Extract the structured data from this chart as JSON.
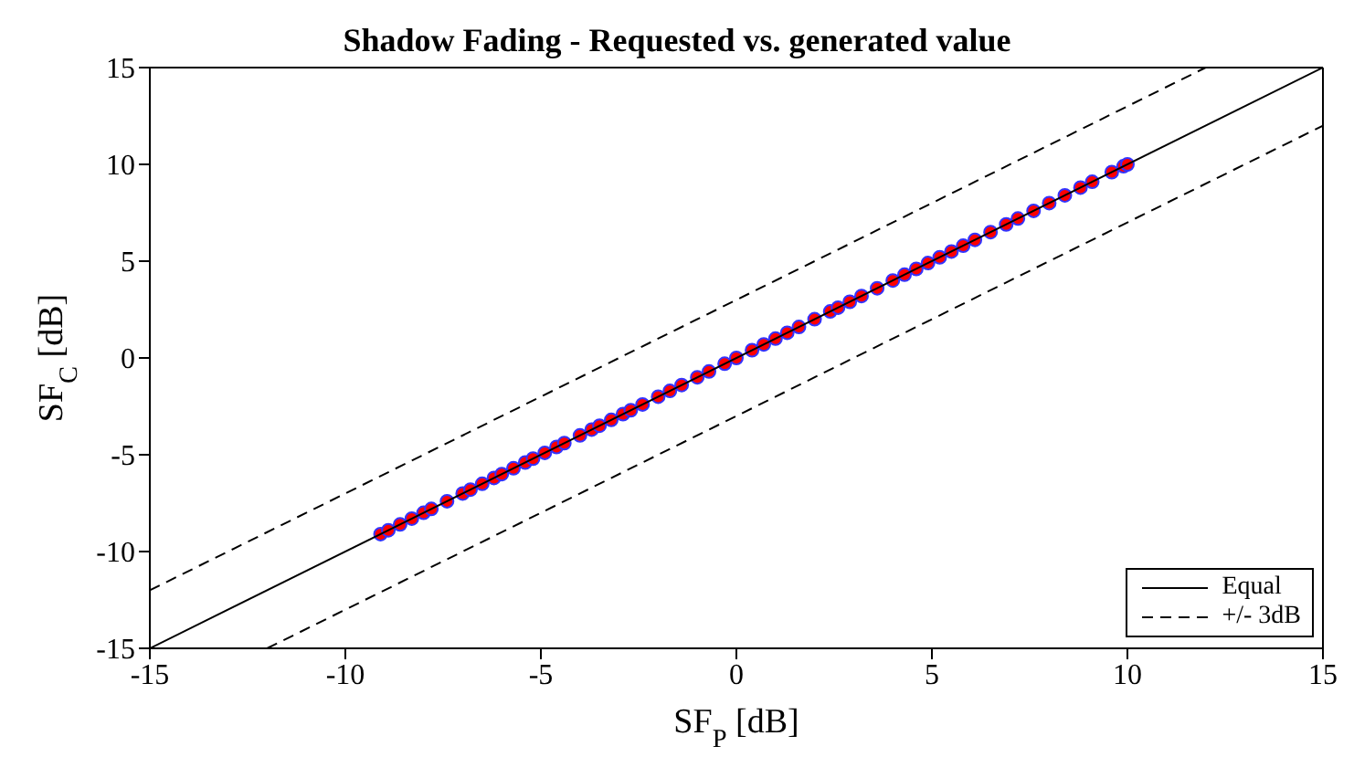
{
  "chart_data": {
    "type": "scatter",
    "title": "Shadow Fading - Requested vs. generated value",
    "xlabel": "SF$_{P}$ [dB]",
    "ylabel": "SF$_{C}$ [dB]",
    "xlim": [
      -15,
      15
    ],
    "ylim": [
      -15,
      15
    ],
    "xticks": [
      -15,
      -10,
      -5,
      0,
      5,
      10,
      15
    ],
    "yticks": [
      -15,
      -10,
      -5,
      0,
      5,
      10,
      15
    ],
    "legend": "bottom right",
    "series": [
      {
        "color": "#ff0000",
        "marker": "circle",
        "x": [
          -9.1,
          -8.9,
          -8.6,
          -8.3,
          -8.0,
          -7.8,
          -7.4,
          -7.0,
          -6.8,
          -6.5,
          -6.2,
          -6.0,
          -5.7,
          -5.4,
          -5.2,
          -4.9,
          -4.6,
          -4.4,
          -4.0,
          -3.7,
          -3.5,
          -3.2,
          -2.9,
          -2.7,
          -2.4,
          -2.0,
          -1.7,
          -1.4,
          -1.0,
          -0.7,
          -0.3,
          0,
          0.4,
          0.7,
          1.0,
          1.3,
          1.6,
          2.0,
          2.4,
          2.6,
          2.9,
          3.2,
          3.6,
          4.0,
          4.3,
          4.6,
          4.9,
          5.2,
          5.5,
          5.8,
          6.1,
          6.5,
          6.9,
          7.2,
          7.6,
          8.0,
          8.4,
          8.8,
          9.1,
          9.6,
          9.9,
          10.0
        ],
        "values": [
          -9.1,
          -8.9,
          -8.6,
          -8.3,
          -8.0,
          -7.8,
          -7.4,
          -7.0,
          -6.8,
          -6.5,
          -6.2,
          -6.0,
          -5.7,
          -5.4,
          -5.2,
          -4.9,
          -4.6,
          -4.4,
          -4.0,
          -3.7,
          -3.5,
          -3.2,
          -2.9,
          -2.7,
          -2.4,
          -2.0,
          -1.7,
          -1.4,
          -1.0,
          -0.7,
          -0.3,
          0,
          0.4,
          0.7,
          1.0,
          1.3,
          1.6,
          2.0,
          2.4,
          2.6,
          2.9,
          3.2,
          3.6,
          4.0,
          4.3,
          4.6,
          4.9,
          5.2,
          5.5,
          5.8,
          6.1,
          6.5,
          6.9,
          7.2,
          7.6,
          8.0,
          8.4,
          8.8,
          9.1,
          9.6,
          9.9,
          10.0
        ]
      },
      {
        "type": "line",
        "name": "Equal",
        "color": "#000000",
        "line_style": "solid",
        "x": [
          -15,
          15
        ],
        "values": [
          -15,
          15
        ]
      },
      {
        "type": "line",
        "name": "+/- 3dB",
        "color": "#000000",
        "line_style": "dashed",
        "x": [
          -15,
          12
        ],
        "values": [
          -12,
          15
        ]
      },
      {
        "type": "line",
        "color": "#000000",
        "line_style": "dashed",
        "x": [
          -12,
          15
        ],
        "values": [
          -15,
          12
        ]
      }
    ]
  }
}
